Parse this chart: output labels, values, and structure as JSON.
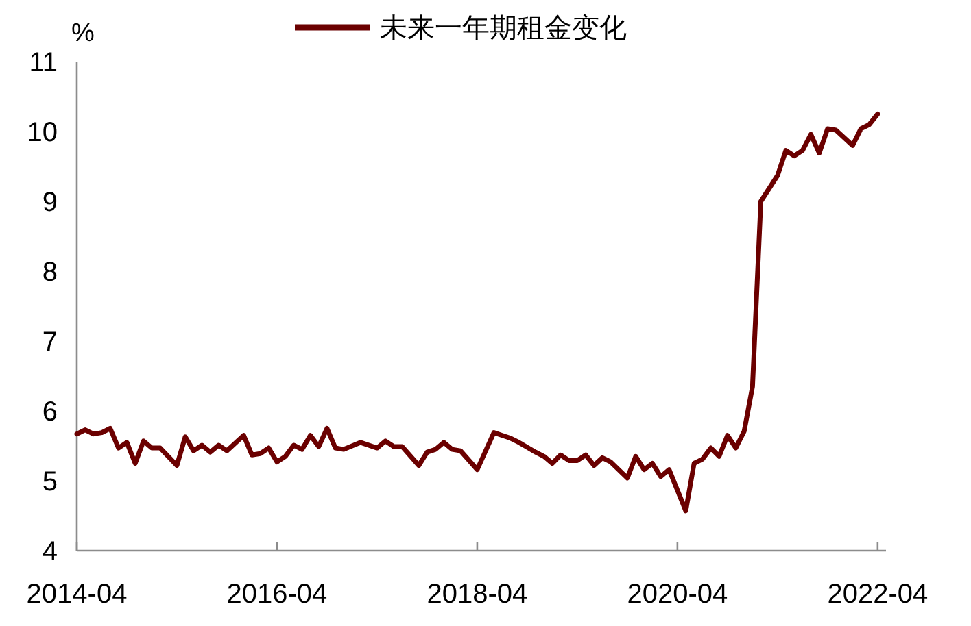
{
  "chart_data": {
    "type": "line",
    "ylabel": "%",
    "legend": "top",
    "x": [
      "2014-04",
      "2014-05",
      "2014-06",
      "2014-07",
      "2014-08",
      "2014-09",
      "2014-10",
      "2014-11",
      "2014-12",
      "2015-01",
      "2015-02",
      "2015-04",
      "2015-05",
      "2015-06",
      "2015-07",
      "2015-08",
      "2015-09",
      "2015-10",
      "2015-12",
      "2016-01",
      "2016-02",
      "2016-03",
      "2016-04",
      "2016-05",
      "2016-06",
      "2016-07",
      "2016-08",
      "2016-09",
      "2016-10",
      "2016-11",
      "2016-12",
      "2017-02",
      "2017-04",
      "2017-05",
      "2017-06",
      "2017-07",
      "2017-09",
      "2017-10",
      "2017-11",
      "2017-12",
      "2018-01",
      "2018-02",
      "2018-04",
      "2018-06",
      "2018-07",
      "2018-08",
      "2018-09",
      "2018-11",
      "2018-12",
      "2019-01",
      "2019-02",
      "2019-03",
      "2019-04",
      "2019-05",
      "2019-06",
      "2019-07",
      "2019-08",
      "2019-10",
      "2019-11",
      "2019-12",
      "2020-01",
      "2020-02",
      "2020-03",
      "2020-05",
      "2020-06",
      "2020-07",
      "2020-08",
      "2020-09",
      "2020-10",
      "2020-11",
      "2020-12",
      "2021-01",
      "2021-02",
      "2021-04",
      "2021-05",
      "2021-06",
      "2021-07",
      "2021-08",
      "2021-09",
      "2021-10",
      "2021-11",
      "2022-01",
      "2022-02",
      "2022-03",
      "2022-04"
    ],
    "series": [
      {
        "name": "未来一年期租金变化",
        "color": "#6b0000",
        "values": [
          5.67,
          5.73,
          5.67,
          5.69,
          5.75,
          5.47,
          5.55,
          5.25,
          5.57,
          5.47,
          5.47,
          5.22,
          5.63,
          5.43,
          5.51,
          5.41,
          5.51,
          5.43,
          5.65,
          5.37,
          5.39,
          5.47,
          5.27,
          5.35,
          5.51,
          5.45,
          5.65,
          5.49,
          5.75,
          5.47,
          5.45,
          5.55,
          5.47,
          5.57,
          5.49,
          5.49,
          5.22,
          5.41,
          5.45,
          5.55,
          5.45,
          5.43,
          5.16,
          5.69,
          5.65,
          5.61,
          5.55,
          5.41,
          5.35,
          5.25,
          5.37,
          5.29,
          5.29,
          5.37,
          5.22,
          5.33,
          5.27,
          5.04,
          5.35,
          5.16,
          5.25,
          5.06,
          5.16,
          4.57,
          5.25,
          5.31,
          5.47,
          5.35,
          5.65,
          5.47,
          5.71,
          6.35,
          9.0,
          9.37,
          9.73,
          9.65,
          9.73,
          9.96,
          9.69,
          10.04,
          10.02,
          9.8,
          10.04,
          10.1,
          10.25
        ]
      }
    ],
    "xlim": [
      "2014-04",
      "2022-05"
    ],
    "xticks": [
      "2014-04",
      "2016-04",
      "2018-04",
      "2020-04",
      "2022-04"
    ],
    "ylim": [
      4,
      11
    ],
    "yticks": [
      4,
      5,
      6,
      7,
      8,
      9,
      10,
      11
    ]
  }
}
